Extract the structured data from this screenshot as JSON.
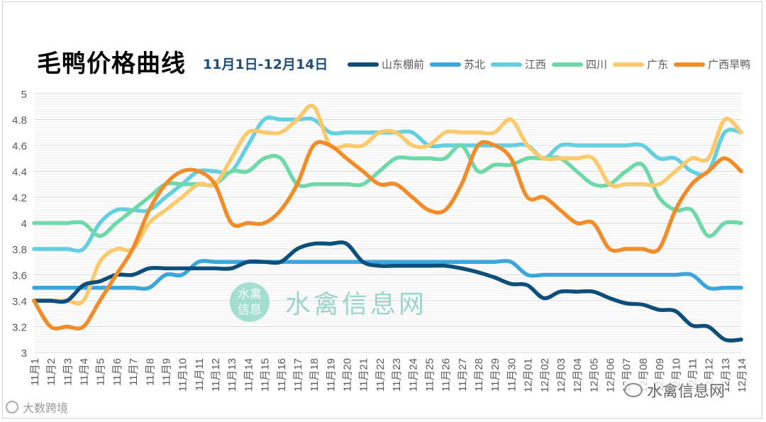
{
  "chart_data": {
    "type": "line",
    "title": "毛鸭价格曲线",
    "subtitle": "11月1日-12月14日",
    "xlabel": "",
    "ylabel": "",
    "ylim": [
      3,
      5
    ],
    "yticks": [
      "3",
      "3.2",
      "3.4",
      "3.6",
      "3.8",
      "4",
      "4.2",
      "4.4",
      "4.6",
      "4.8",
      "5"
    ],
    "grid": true,
    "legend_position": "top-right",
    "categories": [
      "11月1",
      "11月2",
      "11月3",
      "11月4",
      "11月5",
      "11月6",
      "11月7",
      "11月8",
      "11月9",
      "11月10",
      "11月11",
      "11月12",
      "11月13",
      "11月14",
      "11月15",
      "11月16",
      "11月17",
      "11月18",
      "11月19",
      "11月20",
      "11月21",
      "11月22",
      "11月23",
      "11月24",
      "11月25",
      "11月26",
      "11月27",
      "11月28",
      "11月29",
      "11月30",
      "12月01",
      "12月02",
      "12月03",
      "12月04",
      "12月05",
      "12月06",
      "12月07",
      "12月08",
      "12月09",
      "12月10",
      "12月11",
      "12月12",
      "12月13",
      "12月14"
    ],
    "series": [
      {
        "name": "山东棚前",
        "color": "#0d4f7a",
        "values": [
          3.4,
          3.4,
          3.4,
          3.52,
          3.55,
          3.6,
          3.6,
          3.65,
          3.65,
          3.65,
          3.65,
          3.65,
          3.65,
          3.7,
          3.7,
          3.7,
          3.8,
          3.84,
          3.84,
          3.84,
          3.7,
          3.67,
          3.67,
          3.67,
          3.67,
          3.67,
          3.65,
          3.62,
          3.58,
          3.53,
          3.52,
          3.42,
          3.47,
          3.47,
          3.47,
          3.42,
          3.38,
          3.37,
          3.33,
          3.32,
          3.21,
          3.2,
          3.1,
          3.1
        ]
      },
      {
        "name": "苏北",
        "color": "#3aa6dc",
        "values": [
          3.5,
          3.5,
          3.5,
          3.5,
          3.5,
          3.5,
          3.5,
          3.5,
          3.6,
          3.6,
          3.7,
          3.7,
          3.7,
          3.7,
          3.7,
          3.7,
          3.7,
          3.7,
          3.7,
          3.7,
          3.7,
          3.7,
          3.7,
          3.7,
          3.7,
          3.7,
          3.7,
          3.7,
          3.7,
          3.7,
          3.6,
          3.6,
          3.6,
          3.6,
          3.6,
          3.6,
          3.6,
          3.6,
          3.6,
          3.6,
          3.6,
          3.5,
          3.5,
          3.5
        ]
      },
      {
        "name": "江西",
        "color": "#63cfe0",
        "values": [
          3.8,
          3.8,
          3.8,
          3.8,
          4.0,
          4.1,
          4.1,
          4.1,
          4.2,
          4.3,
          4.4,
          4.4,
          4.4,
          4.6,
          4.8,
          4.8,
          4.8,
          4.8,
          4.7,
          4.7,
          4.7,
          4.7,
          4.7,
          4.7,
          4.6,
          4.6,
          4.6,
          4.6,
          4.6,
          4.6,
          4.6,
          4.5,
          4.6,
          4.6,
          4.6,
          4.6,
          4.6,
          4.6,
          4.5,
          4.5,
          4.4,
          4.4,
          4.7,
          4.7
        ]
      },
      {
        "name": "四川",
        "color": "#6fd8a8",
        "values": [
          4.0,
          4.0,
          4.0,
          4.0,
          3.9,
          4.0,
          4.1,
          4.2,
          4.3,
          4.3,
          4.3,
          4.3,
          4.4,
          4.4,
          4.5,
          4.5,
          4.3,
          4.3,
          4.3,
          4.3,
          4.3,
          4.4,
          4.5,
          4.5,
          4.5,
          4.5,
          4.6,
          4.4,
          4.45,
          4.45,
          4.5,
          4.5,
          4.5,
          4.4,
          4.3,
          4.3,
          4.4,
          4.45,
          4.2,
          4.1,
          4.1,
          3.9,
          4.0,
          4.0
        ]
      },
      {
        "name": "广东",
        "color": "#fdc96a",
        "values": [
          3.4,
          3.4,
          3.4,
          3.4,
          3.7,
          3.8,
          3.8,
          4.0,
          4.1,
          4.2,
          4.3,
          4.3,
          4.5,
          4.7,
          4.7,
          4.7,
          4.8,
          4.9,
          4.6,
          4.6,
          4.6,
          4.7,
          4.7,
          4.6,
          4.6,
          4.7,
          4.7,
          4.7,
          4.7,
          4.8,
          4.6,
          4.5,
          4.5,
          4.5,
          4.5,
          4.3,
          4.3,
          4.3,
          4.3,
          4.4,
          4.5,
          4.5,
          4.8,
          4.7
        ]
      },
      {
        "name": "广西旱鸭",
        "color": "#f28c28",
        "values": [
          3.4,
          3.2,
          3.2,
          3.2,
          3.4,
          3.6,
          3.8,
          4.1,
          4.3,
          4.4,
          4.4,
          4.3,
          4.0,
          4.0,
          4.0,
          4.1,
          4.3,
          4.6,
          4.6,
          4.5,
          4.4,
          4.3,
          4.3,
          4.2,
          4.1,
          4.1,
          4.3,
          4.6,
          4.6,
          4.5,
          4.2,
          4.2,
          4.1,
          4.0,
          4.0,
          3.8,
          3.8,
          3.8,
          3.8,
          4.1,
          4.3,
          4.4,
          4.5,
          4.4
        ]
      }
    ]
  },
  "watermark": {
    "badge_line1": "水禽",
    "badge_line2": "信息",
    "text": "水禽信息网"
  },
  "footer": {
    "left_text": "大数跨境",
    "right_text": "水禽信息网"
  }
}
